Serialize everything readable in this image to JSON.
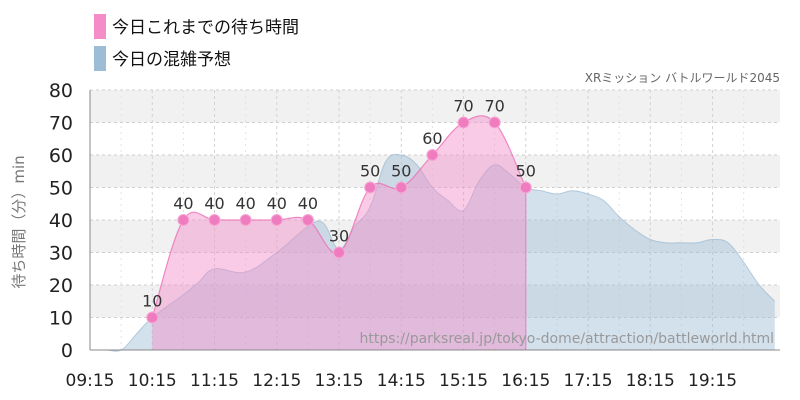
{
  "chart_data": {
    "type": "area",
    "subtitle": "XRミッション バトルワールド2045",
    "ylabel": "待ち時間（分）min",
    "watermark": "https://parksreal.jp/tokyo-dome/attraction/battleworld.html",
    "ylim": [
      0,
      80
    ],
    "yticks": [
      0,
      10,
      20,
      30,
      40,
      50,
      60,
      70,
      80
    ],
    "xlim": [
      "09:15",
      "20:20"
    ],
    "xticks": [
      "09:15",
      "10:15",
      "11:15",
      "12:15",
      "13:15",
      "14:15",
      "15:15",
      "16:15",
      "17:15",
      "18:15",
      "19:15"
    ],
    "grid": true,
    "legend_position": "top-left",
    "series": [
      {
        "name": "今日これまでの待ち時間",
        "color": "#f48cc8",
        "x": [
          "10:15",
          "10:45",
          "11:15",
          "11:45",
          "12:15",
          "12:45",
          "13:15",
          "13:45",
          "14:15",
          "14:45",
          "15:15",
          "15:45",
          "16:15"
        ],
        "values": [
          10,
          40,
          40,
          40,
          40,
          40,
          30,
          50,
          50,
          60,
          70,
          70,
          50
        ]
      },
      {
        "name": "今日の混雑予想",
        "color": "#9dbcd6",
        "x": [
          "09:15",
          "09:30",
          "09:45",
          "10:00",
          "10:15",
          "10:45",
          "11:00",
          "11:15",
          "11:45",
          "12:15",
          "12:45",
          "13:00",
          "13:15",
          "13:30",
          "13:45",
          "14:00",
          "14:15",
          "14:30",
          "14:45",
          "15:00",
          "15:15",
          "15:30",
          "15:45",
          "16:00",
          "16:15",
          "16:30",
          "16:45",
          "17:00",
          "17:15",
          "17:30",
          "17:45",
          "18:00",
          "18:15",
          "18:30",
          "18:45",
          "19:00",
          "19:15",
          "19:30",
          "19:45",
          "20:00",
          "20:15"
        ],
        "values": [
          0,
          0,
          0,
          5,
          10,
          17,
          21,
          25,
          24,
          30,
          38,
          39,
          31,
          38,
          44,
          58,
          60,
          57,
          50,
          46,
          43,
          52,
          57,
          54,
          50,
          49,
          48,
          49,
          48,
          46,
          41,
          37,
          34,
          33,
          33,
          33,
          34,
          33,
          27,
          20,
          15
        ]
      }
    ]
  }
}
